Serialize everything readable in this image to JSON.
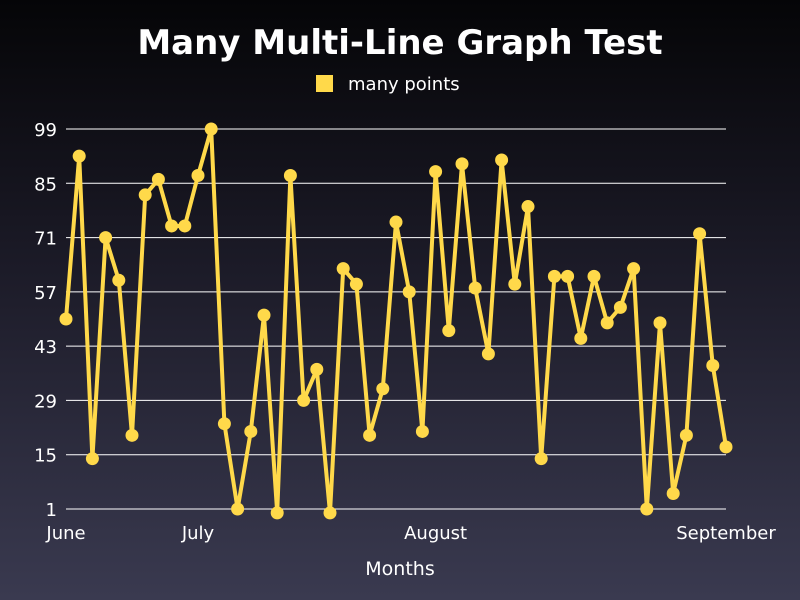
{
  "chart_data": {
    "type": "line",
    "title": "Many Multi-Line Graph Test",
    "xlabel": "Months",
    "ylabel": "",
    "ylim": [
      1,
      99
    ],
    "yticks": [
      1,
      15,
      29,
      43,
      57,
      71,
      85,
      99
    ],
    "ytick_labels": [
      "1",
      "15",
      "29",
      "43",
      "57",
      "71",
      "85",
      "99"
    ],
    "x_tick_labels": [
      {
        "label": "June",
        "index": 0
      },
      {
        "label": "July",
        "index": 10
      },
      {
        "label": "August",
        "index": 28
      },
      {
        "label": "September",
        "index": 50
      }
    ],
    "grid": true,
    "legend_position": "top-center",
    "series": [
      {
        "name": "many points",
        "color": "#ffd94a",
        "values": [
          50,
          92,
          14,
          71,
          60,
          20,
          82,
          86,
          74,
          74,
          87,
          99,
          23,
          1,
          21,
          51,
          0,
          87,
          29,
          37,
          0,
          63,
          59,
          20,
          32,
          75,
          57,
          21,
          88,
          47,
          90,
          58,
          41,
          91,
          59,
          79,
          14,
          61,
          61,
          45,
          61,
          49,
          53,
          63,
          1,
          49,
          5,
          20,
          72,
          38,
          17
        ]
      }
    ]
  }
}
